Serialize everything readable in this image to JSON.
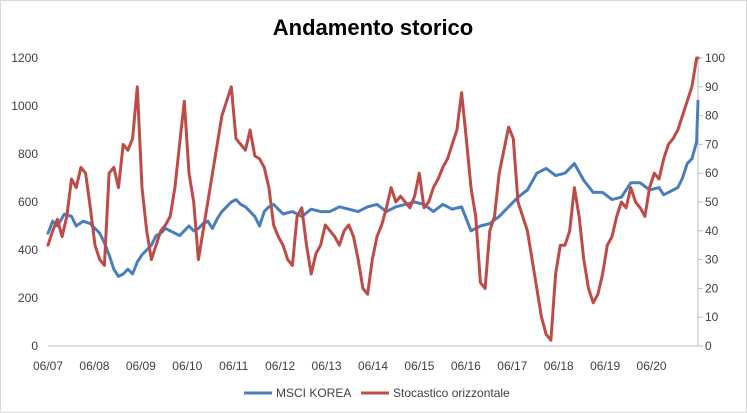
{
  "chart_data": {
    "type": "line",
    "title": "Andamento storico",
    "xlabel": "",
    "ylabel": "",
    "x_ticks": [
      "06/07",
      "06/08",
      "06/09",
      "06/10",
      "06/11",
      "06/12",
      "06/13",
      "06/14",
      "06/15",
      "06/16",
      "06/17",
      "06/18",
      "06/19",
      "06/20"
    ],
    "ylim_left": [
      0,
      1200
    ],
    "yticks_left": [
      0,
      200,
      400,
      600,
      800,
      1000,
      1200
    ],
    "ylim_right": [
      0,
      100
    ],
    "yticks_right": [
      0,
      10,
      20,
      30,
      40,
      50,
      60,
      70,
      80,
      90,
      100
    ],
    "x_range": [
      2007.0,
      2020.83
    ],
    "grid": false,
    "legend_position": "bottom",
    "series": [
      {
        "name": "MSCI KOREA",
        "axis": "left",
        "color": "#4a7ebb",
        "x": [
          2007.0,
          2007.1,
          2007.2,
          2007.35,
          2007.5,
          2007.6,
          2007.75,
          2007.9,
          2008.0,
          2008.1,
          2008.2,
          2008.3,
          2008.4,
          2008.5,
          2008.6,
          2008.7,
          2008.8,
          2008.9,
          2009.0,
          2009.1,
          2009.2,
          2009.3,
          2009.4,
          2009.5,
          2009.6,
          2009.7,
          2009.8,
          2009.9,
          2010.0,
          2010.1,
          2010.2,
          2010.3,
          2010.4,
          2010.5,
          2010.6,
          2010.7,
          2010.8,
          2010.9,
          2011.0,
          2011.1,
          2011.2,
          2011.3,
          2011.4,
          2011.5,
          2011.6,
          2011.7,
          2011.8,
          2011.9,
          2012.0,
          2012.2,
          2012.4,
          2012.6,
          2012.8,
          2013.0,
          2013.2,
          2013.4,
          2013.6,
          2013.8,
          2014.0,
          2014.2,
          2014.4,
          2014.6,
          2014.8,
          2015.0,
          2015.2,
          2015.4,
          2015.6,
          2015.8,
          2016.0,
          2016.2,
          2016.4,
          2016.6,
          2016.8,
          2017.0,
          2017.2,
          2017.4,
          2017.6,
          2017.8,
          2018.0,
          2018.2,
          2018.4,
          2018.6,
          2018.8,
          2019.0,
          2019.2,
          2019.4,
          2019.6,
          2019.8,
          2020.0,
          2020.1,
          2020.2,
          2020.3,
          2020.4,
          2020.5,
          2020.6,
          2020.7,
          2020.8,
          2020.83
        ],
        "values": [
          470,
          520,
          500,
          550,
          540,
          500,
          520,
          510,
          490,
          470,
          430,
          380,
          320,
          290,
          300,
          320,
          300,
          350,
          380,
          400,
          420,
          460,
          470,
          490,
          480,
          470,
          460,
          480,
          500,
          480,
          490,
          510,
          520,
          490,
          530,
          560,
          580,
          600,
          610,
          590,
          580,
          560,
          540,
          500,
          560,
          580,
          590,
          570,
          550,
          560,
          540,
          570,
          560,
          560,
          580,
          570,
          560,
          580,
          590,
          560,
          580,
          590,
          600,
          590,
          560,
          590,
          570,
          580,
          480,
          500,
          510,
          540,
          580,
          620,
          650,
          720,
          740,
          710,
          720,
          760,
          690,
          640,
          640,
          610,
          620,
          680,
          680,
          650,
          660,
          630,
          640,
          650,
          660,
          700,
          760,
          780,
          850,
          1020
        ]
      },
      {
        "name": "Stocastico orizzontale",
        "axis": "right",
        "color": "#be4b48",
        "x": [
          2007.0,
          2007.1,
          2007.2,
          2007.3,
          2007.4,
          2007.5,
          2007.6,
          2007.7,
          2007.8,
          2007.9,
          2008.0,
          2008.1,
          2008.2,
          2008.3,
          2008.4,
          2008.5,
          2008.6,
          2008.7,
          2008.8,
          2008.9,
          2009.0,
          2009.1,
          2009.2,
          2009.3,
          2009.4,
          2009.5,
          2009.6,
          2009.7,
          2009.8,
          2009.9,
          2010.0,
          2010.1,
          2010.2,
          2010.3,
          2010.4,
          2010.5,
          2010.6,
          2010.7,
          2010.8,
          2010.9,
          2011.0,
          2011.1,
          2011.2,
          2011.3,
          2011.4,
          2011.5,
          2011.6,
          2011.7,
          2011.8,
          2011.9,
          2012.0,
          2012.1,
          2012.2,
          2012.3,
          2012.4,
          2012.5,
          2012.6,
          2012.7,
          2012.8,
          2012.9,
          2013.0,
          2013.1,
          2013.2,
          2013.3,
          2013.4,
          2013.5,
          2013.6,
          2013.7,
          2013.8,
          2013.9,
          2014.0,
          2014.1,
          2014.2,
          2014.3,
          2014.4,
          2014.5,
          2014.6,
          2014.7,
          2014.8,
          2014.9,
          2015.0,
          2015.1,
          2015.2,
          2015.3,
          2015.4,
          2015.5,
          2015.6,
          2015.7,
          2015.8,
          2015.9,
          2016.0,
          2016.1,
          2016.2,
          2016.3,
          2016.4,
          2016.5,
          2016.6,
          2016.7,
          2016.8,
          2016.9,
          2017.0,
          2017.1,
          2017.2,
          2017.3,
          2017.4,
          2017.5,
          2017.6,
          2017.7,
          2017.8,
          2017.9,
          2018.0,
          2018.1,
          2018.2,
          2018.3,
          2018.4,
          2018.5,
          2018.6,
          2018.7,
          2018.8,
          2018.9,
          2019.0,
          2019.1,
          2019.2,
          2019.3,
          2019.4,
          2019.5,
          2019.6,
          2019.7,
          2019.8,
          2019.9,
          2020.0,
          2020.1,
          2020.2,
          2020.3,
          2020.4,
          2020.5,
          2020.6,
          2020.7,
          2020.8,
          2020.83
        ],
        "values": [
          35,
          40,
          44,
          38,
          45,
          58,
          55,
          62,
          60,
          48,
          35,
          30,
          28,
          60,
          62,
          55,
          70,
          68,
          72,
          90,
          55,
          40,
          30,
          35,
          40,
          42,
          45,
          55,
          70,
          85,
          60,
          50,
          30,
          40,
          50,
          60,
          70,
          80,
          85,
          90,
          72,
          70,
          68,
          75,
          66,
          65,
          62,
          55,
          42,
          38,
          35,
          30,
          28,
          45,
          48,
          35,
          25,
          32,
          35,
          42,
          40,
          38,
          35,
          40,
          42,
          38,
          30,
          20,
          18,
          30,
          38,
          42,
          48,
          55,
          50,
          52,
          50,
          48,
          52,
          60,
          48,
          50,
          55,
          58,
          62,
          65,
          70,
          75,
          88,
          72,
          55,
          45,
          22,
          20,
          40,
          45,
          60,
          68,
          76,
          72,
          50,
          45,
          40,
          30,
          20,
          10,
          4,
          2,
          25,
          35,
          35,
          40,
          55,
          45,
          30,
          20,
          15,
          18,
          25,
          35,
          38,
          45,
          50,
          48,
          55,
          50,
          48,
          45,
          55,
          60,
          58,
          65,
          70,
          72,
          75,
          80,
          85,
          90,
          100,
          100
        ]
      }
    ]
  },
  "legend": {
    "items": [
      {
        "label": "MSCI KOREA",
        "color": "#4a7ebb"
      },
      {
        "label": "Stocastico orizzontale",
        "color": "#be4b48"
      }
    ]
  }
}
